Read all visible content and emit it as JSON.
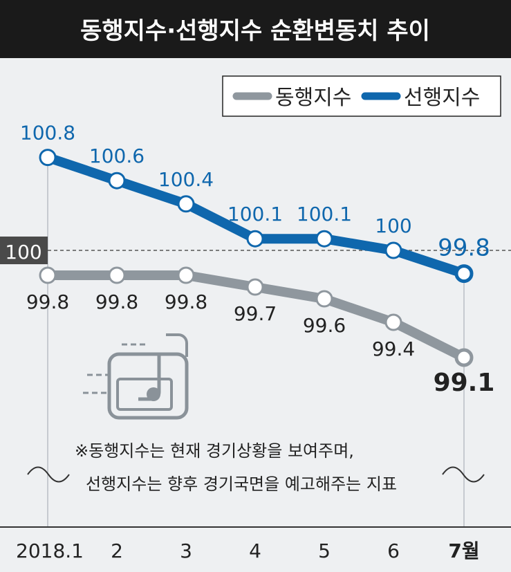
{
  "chart_data": {
    "type": "line",
    "title": "동행지수·선행지수 순환변동치 추이",
    "categories": [
      "2018.1",
      "2",
      "3",
      "4",
      "5",
      "6",
      "7월"
    ],
    "series": [
      {
        "name": "동행지수",
        "values": [
          99.8,
          99.8,
          99.8,
          99.7,
          99.6,
          99.4,
          99.1
        ],
        "labels": [
          "99.8",
          "99.8",
          "99.8",
          "99.7",
          "99.6",
          "99.4",
          "99.1"
        ],
        "color": "#8f979e"
      },
      {
        "name": "선행지수",
        "values": [
          100.8,
          100.6,
          100.4,
          100.1,
          100.1,
          100,
          99.8
        ],
        "labels": [
          "100.8",
          "100.6",
          "100.4",
          "100.1",
          "100.1",
          "100",
          "99.8"
        ],
        "color": "#0f67ad"
      }
    ],
    "reference_line": {
      "value": 100,
      "label": "100"
    },
    "legend_position": "top-right",
    "note_lines": [
      "※동행지수는 현재 경기상황을 보여주며,",
      "선행지수는 향후 경기국면을 예고해주는 지표"
    ],
    "colors": {
      "title_bg": "#1a1a1a",
      "plot_bg": "#eef0f2",
      "ref_label_bg": "#4a4a4a",
      "icon": "#8a9299"
    }
  }
}
